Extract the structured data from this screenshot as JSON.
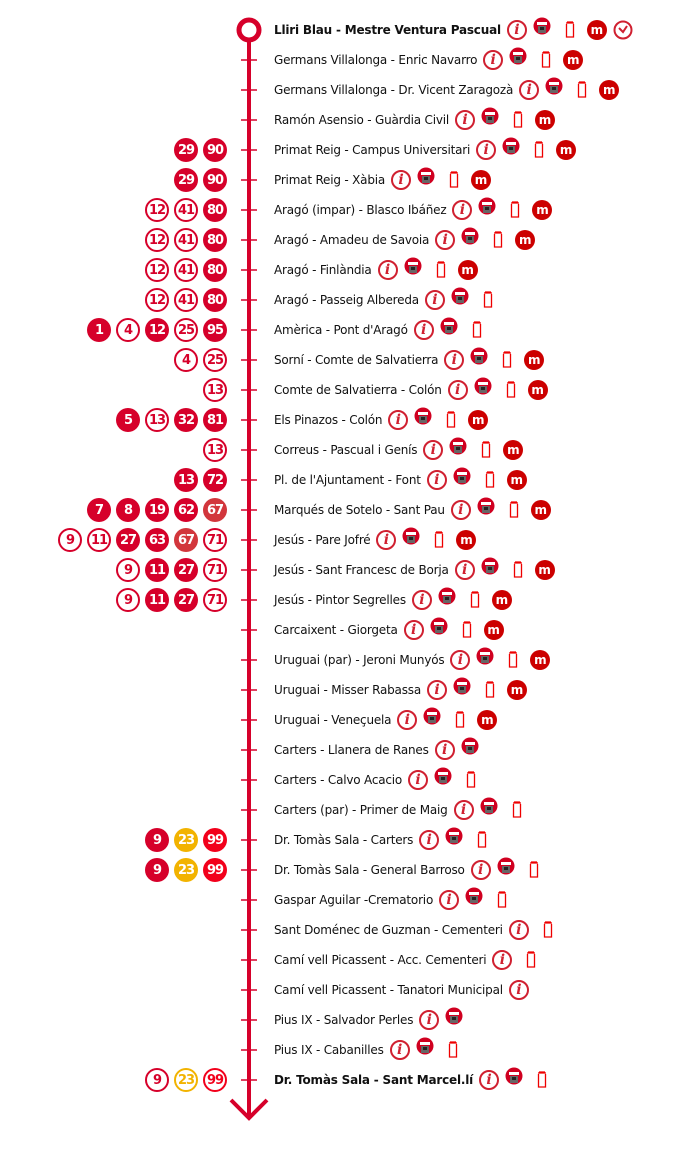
{
  "colors": {
    "route": "#d6002a",
    "filled": "#d6002a",
    "filled_light": "#d2363c",
    "yellow": "#f2b300",
    "bright": "#f2001b",
    "metro": "#cc0000"
  },
  "icon_legend": {
    "info": "info-icon",
    "ticket": "ticket-machine-icon",
    "shelter": "bus-shelter-icon",
    "metro": "metro-icon",
    "clock": "clock-icon"
  },
  "stops": [
    {
      "name": "Lliri Blau - Mestre Ventura Pascual",
      "bold": true,
      "terminal": "start",
      "icons": [
        "info",
        "ticket",
        "shelter",
        "metro",
        "clock"
      ],
      "lines": []
    },
    {
      "name": "Germans Villalonga - Enric Navarro",
      "icons": [
        "info",
        "ticket",
        "shelter",
        "metro"
      ],
      "lines": []
    },
    {
      "name": "Germans Villalonga - Dr. Vicent Zaragozà",
      "icons": [
        "info",
        "ticket",
        "shelter",
        "metro"
      ],
      "lines": []
    },
    {
      "name": "Ramón Asensio - Guàrdia Civil",
      "icons": [
        "info",
        "ticket",
        "shelter",
        "metro"
      ],
      "lines": []
    },
    {
      "name": "Primat Reig - Campus Universitari",
      "icons": [
        "info",
        "ticket",
        "shelter",
        "metro"
      ],
      "lines": [
        {
          "n": "29",
          "s": "filled"
        },
        {
          "n": "90",
          "s": "filled"
        }
      ]
    },
    {
      "name": "Primat Reig - Xàbia",
      "icons": [
        "info",
        "ticket",
        "shelter",
        "metro"
      ],
      "lines": [
        {
          "n": "29",
          "s": "filled"
        },
        {
          "n": "90",
          "s": "filled"
        }
      ]
    },
    {
      "name": "Aragó (impar) - Blasco Ibáñez",
      "icons": [
        "info",
        "ticket",
        "shelter",
        "metro"
      ],
      "lines": [
        {
          "n": "12",
          "s": "outline"
        },
        {
          "n": "41",
          "s": "outline"
        },
        {
          "n": "80",
          "s": "filled"
        }
      ]
    },
    {
      "name": "Aragó - Amadeu de Savoia",
      "icons": [
        "info",
        "ticket",
        "shelter",
        "metro"
      ],
      "lines": [
        {
          "n": "12",
          "s": "outline"
        },
        {
          "n": "41",
          "s": "outline"
        },
        {
          "n": "80",
          "s": "filled"
        }
      ]
    },
    {
      "name": "Aragó - Finlàndia",
      "icons": [
        "info",
        "ticket",
        "shelter",
        "metro"
      ],
      "lines": [
        {
          "n": "12",
          "s": "outline"
        },
        {
          "n": "41",
          "s": "outline"
        },
        {
          "n": "80",
          "s": "filled"
        }
      ]
    },
    {
      "name": "Aragó - Passeig Albereda",
      "icons": [
        "info",
        "ticket",
        "shelter"
      ],
      "lines": [
        {
          "n": "12",
          "s": "outline"
        },
        {
          "n": "41",
          "s": "outline"
        },
        {
          "n": "80",
          "s": "filled"
        }
      ]
    },
    {
      "name": "Amèrica - Pont d'Aragó",
      "icons": [
        "info",
        "ticket",
        "shelter"
      ],
      "lines": [
        {
          "n": "1",
          "s": "filled"
        },
        {
          "n": "4",
          "s": "outline"
        },
        {
          "n": "12",
          "s": "filled"
        },
        {
          "n": "25",
          "s": "outline"
        },
        {
          "n": "95",
          "s": "filled"
        }
      ]
    },
    {
      "name": "Sorní - Comte de Salvatierra",
      "icons": [
        "info",
        "ticket",
        "shelter",
        "metro"
      ],
      "lines": [
        {
          "n": "4",
          "s": "outline"
        },
        {
          "n": "25",
          "s": "outline"
        }
      ]
    },
    {
      "name": "Comte de Salvatierra - Colón",
      "icons": [
        "info",
        "ticket",
        "shelter",
        "metro"
      ],
      "lines": [
        {
          "n": "13",
          "s": "outline"
        }
      ]
    },
    {
      "name": "Els Pinazos - Colón",
      "icons": [
        "info",
        "ticket",
        "shelter",
        "metro"
      ],
      "lines": [
        {
          "n": "5",
          "s": "filled"
        },
        {
          "n": "13",
          "s": "outline"
        },
        {
          "n": "32",
          "s": "filled"
        },
        {
          "n": "81",
          "s": "filled"
        }
      ]
    },
    {
      "name": "Correus - Pascual i Genís",
      "icons": [
        "info",
        "ticket",
        "shelter",
        "metro"
      ],
      "lines": [
        {
          "n": "13",
          "s": "outline"
        }
      ]
    },
    {
      "name": "Pl. de l'Ajuntament - Font",
      "icons": [
        "info",
        "ticket",
        "shelter",
        "metro"
      ],
      "lines": [
        {
          "n": "13",
          "s": "filled"
        },
        {
          "n": "72",
          "s": "filled"
        }
      ]
    },
    {
      "name": "Marqués de Sotelo - Sant Pau",
      "icons": [
        "info",
        "ticket",
        "shelter",
        "metro"
      ],
      "lines": [
        {
          "n": "7",
          "s": "filled"
        },
        {
          "n": "8",
          "s": "filled"
        },
        {
          "n": "19",
          "s": "filled"
        },
        {
          "n": "62",
          "s": "filled"
        },
        {
          "n": "67",
          "s": "filled-light"
        }
      ]
    },
    {
      "name": "Jesús - Pare Jofré",
      "icons": [
        "info",
        "ticket",
        "shelter",
        "metro"
      ],
      "lines": [
        {
          "n": "9",
          "s": "outline"
        },
        {
          "n": "11",
          "s": "outline"
        },
        {
          "n": "27",
          "s": "filled"
        },
        {
          "n": "63",
          "s": "filled"
        },
        {
          "n": "67",
          "s": "filled-light"
        },
        {
          "n": "71",
          "s": "outline"
        }
      ]
    },
    {
      "name": "Jesús - Sant Francesc de Borja",
      "icons": [
        "info",
        "ticket",
        "shelter",
        "metro"
      ],
      "lines": [
        {
          "n": "9",
          "s": "outline"
        },
        {
          "n": "11",
          "s": "filled"
        },
        {
          "n": "27",
          "s": "filled"
        },
        {
          "n": "71",
          "s": "outline"
        }
      ]
    },
    {
      "name": "Jesús - Pintor Segrelles",
      "icons": [
        "info",
        "ticket",
        "shelter",
        "metro"
      ],
      "lines": [
        {
          "n": "9",
          "s": "outline"
        },
        {
          "n": "11",
          "s": "filled"
        },
        {
          "n": "27",
          "s": "filled"
        },
        {
          "n": "71",
          "s": "outline"
        }
      ]
    },
    {
      "name": "Carcaixent - Giorgeta",
      "icons": [
        "info",
        "ticket",
        "shelter",
        "metro"
      ],
      "lines": []
    },
    {
      "name": "Uruguai (par) - Jeroni Munyós",
      "icons": [
        "info",
        "ticket",
        "shelter",
        "metro"
      ],
      "lines": []
    },
    {
      "name": "Uruguai - Misser Rabassa",
      "icons": [
        "info",
        "ticket",
        "shelter",
        "metro"
      ],
      "lines": []
    },
    {
      "name": "Uruguai - Veneçuela",
      "icons": [
        "info",
        "ticket",
        "shelter",
        "metro"
      ],
      "lines": []
    },
    {
      "name": "Carters - Llanera de Ranes",
      "icons": [
        "info",
        "ticket"
      ],
      "lines": []
    },
    {
      "name": "Carters - Calvo Acacio",
      "icons": [
        "info",
        "ticket",
        "shelter"
      ],
      "lines": []
    },
    {
      "name": "Carters (par) - Primer de Maig",
      "icons": [
        "info",
        "ticket",
        "shelter"
      ],
      "lines": []
    },
    {
      "name": "Dr. Tomàs Sala - Carters",
      "icons": [
        "info",
        "ticket",
        "shelter"
      ],
      "lines": [
        {
          "n": "9",
          "s": "filled"
        },
        {
          "n": "23",
          "s": "yellow"
        },
        {
          "n": "99",
          "s": "bright"
        }
      ]
    },
    {
      "name": "Dr. Tomàs Sala - General Barroso",
      "icons": [
        "info",
        "ticket",
        "shelter"
      ],
      "lines": [
        {
          "n": "9",
          "s": "filled"
        },
        {
          "n": "23",
          "s": "yellow"
        },
        {
          "n": "99",
          "s": "bright"
        }
      ]
    },
    {
      "name": "Gaspar Aguilar -Crematorio",
      "icons": [
        "info",
        "ticket",
        "shelter"
      ],
      "lines": []
    },
    {
      "name": "Sant Doménec de Guzman - Cementeri",
      "icons": [
        "info",
        "shelter"
      ],
      "lines": []
    },
    {
      "name": "Camí vell Picassent - Acc. Cementeri",
      "icons": [
        "info",
        "shelter"
      ],
      "lines": []
    },
    {
      "name": "Camí vell Picassent - Tanatori Municipal",
      "icons": [
        "info"
      ],
      "lines": []
    },
    {
      "name": "Pius IX - Salvador Perles",
      "icons": [
        "info",
        "ticket"
      ],
      "lines": []
    },
    {
      "name": "Pius IX - Cabanilles",
      "icons": [
        "info",
        "ticket",
        "shelter"
      ],
      "lines": []
    },
    {
      "name": "Dr. Tomàs Sala - Sant Marcel.lí",
      "bold": true,
      "terminal": "end",
      "icons": [
        "info",
        "ticket",
        "shelter"
      ],
      "lines": [
        {
          "n": "9",
          "s": "outline"
        },
        {
          "n": "23",
          "s": "yellow-outline"
        },
        {
          "n": "99",
          "s": "bright-outline"
        }
      ]
    }
  ]
}
